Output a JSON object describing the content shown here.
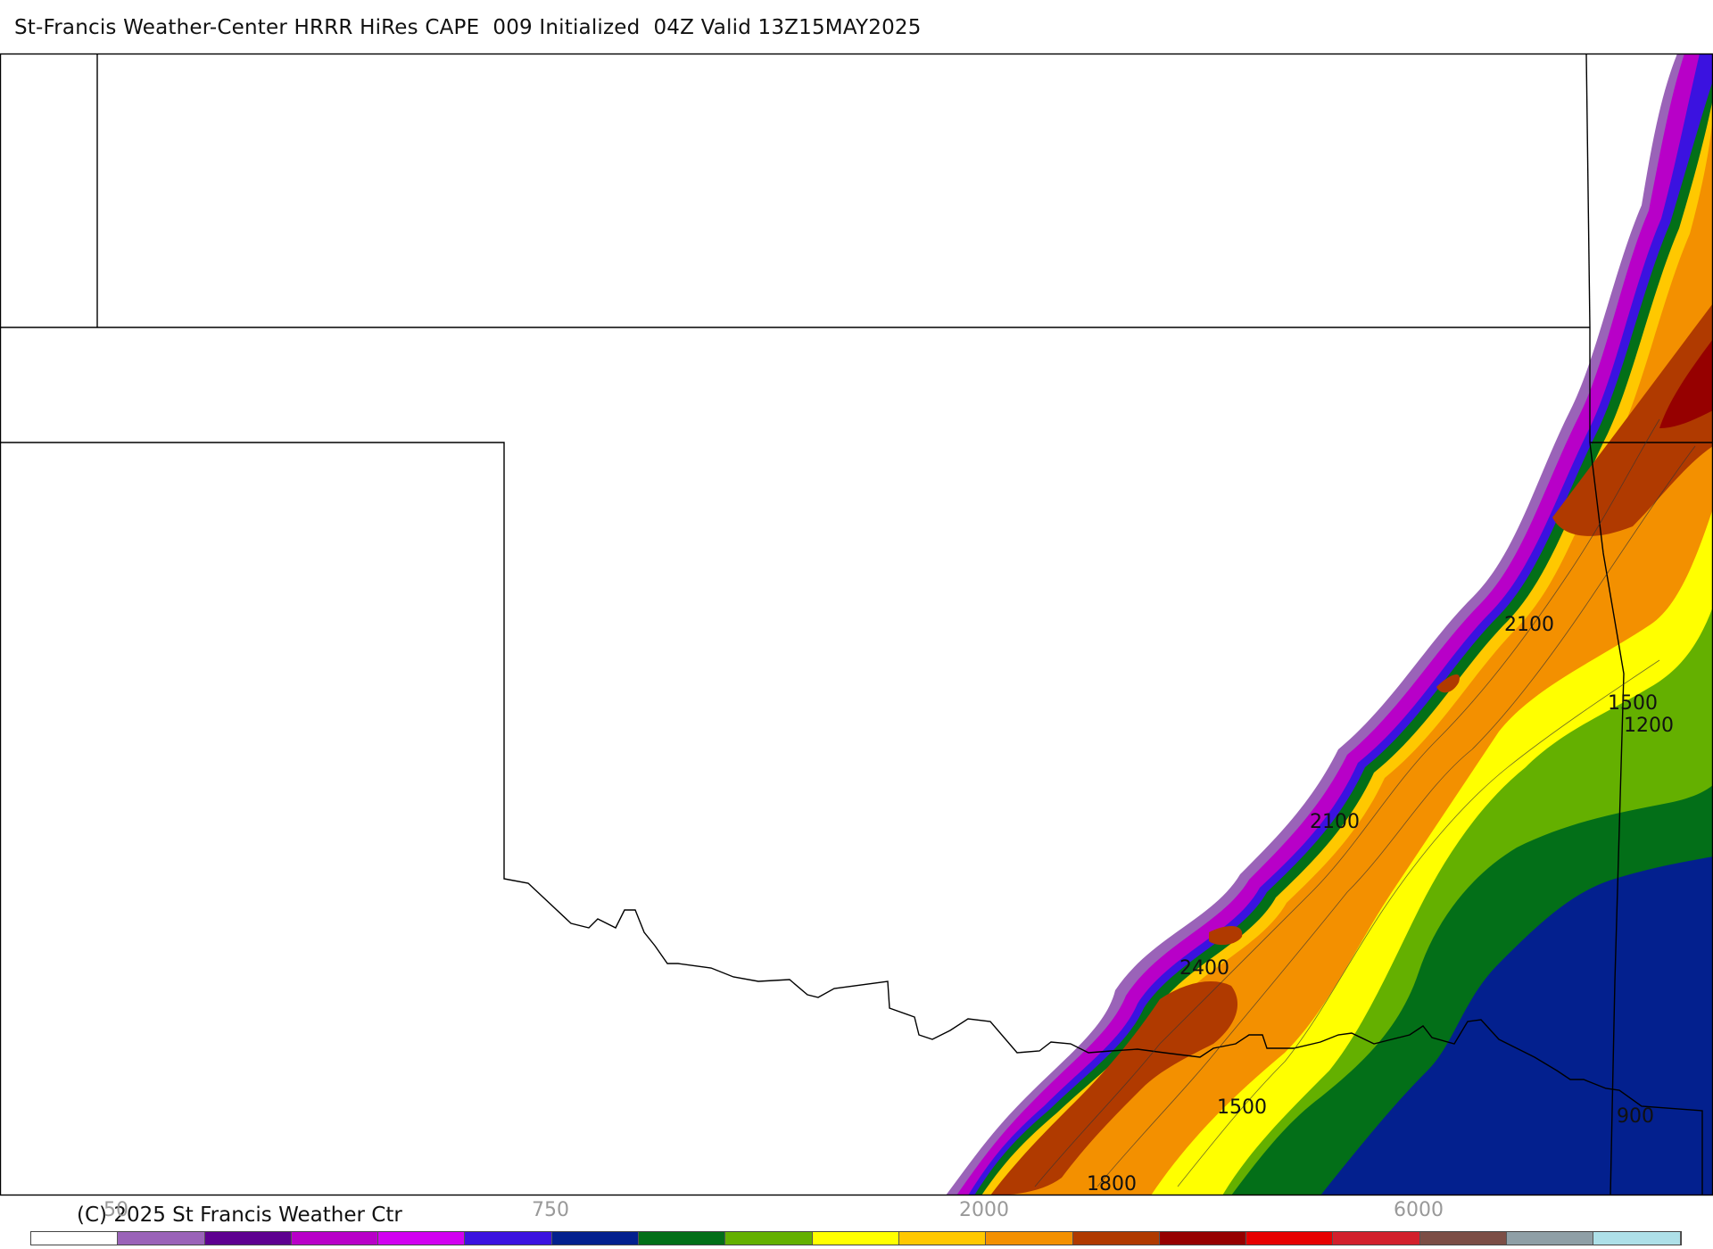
{
  "title": "St-Francis Weather-Center HRRR HiRes CAPE  009 Initialized  04Z Valid 13Z15MAY2025",
  "copyright": "(C) 2025 St Francis Weather Ctr",
  "contour_labels": [
    "2100",
    "1500",
    "1200",
    "2100",
    "2400",
    "1500",
    "900",
    "1800"
  ],
  "colorbar": {
    "colors": [
      "#ffffff",
      "#9a63b8",
      "#5e0090",
      "#b800c8",
      "#d100f0",
      "#3b12e0",
      "#03208e",
      "#036f18",
      "#64b000",
      "#ffff00",
      "#ffc800",
      "#f39000",
      "#b03a00",
      "#960000",
      "#e60000",
      "#d2202c",
      "#7c4e46",
      "#8f9fa6",
      "#aee0e8"
    ],
    "tick_labels": [
      "50",
      "750",
      "2000",
      "6000"
    ]
  }
}
